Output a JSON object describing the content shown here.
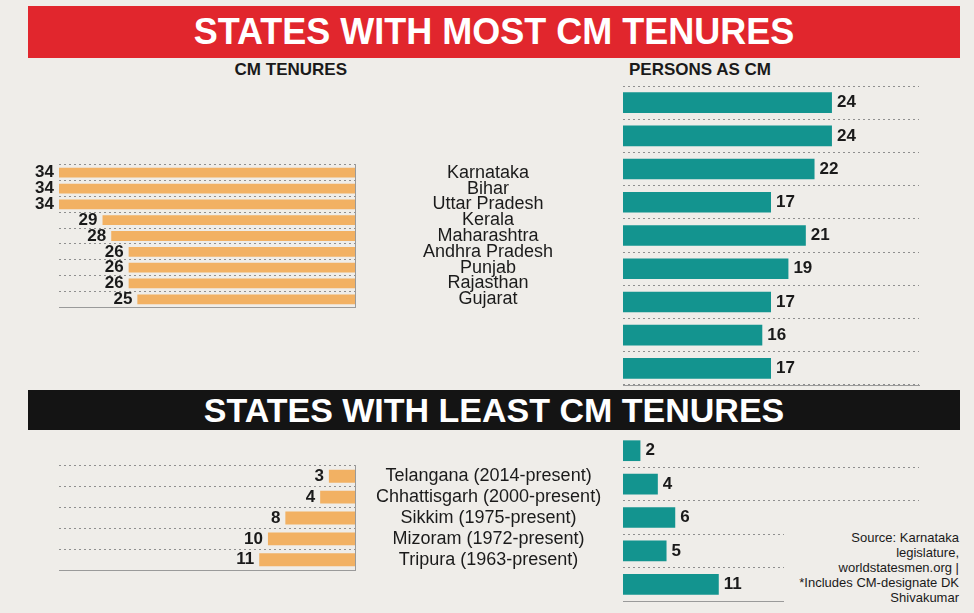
{
  "chart_data": [
    {
      "type": "bar",
      "title": "STATES WITH MOST CM TENURES",
      "orientation": "horizontal",
      "categories": [
        "Karnataka",
        "Bihar",
        "Uttar Pradesh",
        "Kerala",
        "Maharashtra",
        "Andhra Pradesh",
        "Punjab",
        "Rajasthan",
        "Gujarat"
      ],
      "series": [
        {
          "name": "CM TENURES",
          "color": "#f2b163",
          "values": [
            34,
            34,
            34,
            29,
            28,
            26,
            26,
            26,
            25
          ]
        },
        {
          "name": "PERSONS AS CM",
          "color": "#13948f",
          "values": [
            24,
            24,
            22,
            17,
            21,
            19,
            17,
            16,
            17
          ]
        }
      ],
      "xlim": [
        0,
        34
      ],
      "data_labels": true,
      "tick_labels": "y",
      "grid": true
    },
    {
      "type": "bar",
      "title": "STATES WITH LEAST CM TENURES",
      "orientation": "horizontal",
      "categories": [
        "Telangana (2014-present)",
        "Chhattisgarh (2000-present)",
        "Sikkim (1975-present)",
        "Mizoram (1972-present)",
        "Tripura (1963-present)"
      ],
      "series": [
        {
          "color": "#f2b163",
          "values": [
            3,
            4,
            8,
            10,
            11
          ]
        },
        {
          "color": "#13948f",
          "values": [
            2,
            4,
            6,
            5,
            11
          ]
        }
      ],
      "xlim": [
        0,
        34
      ],
      "data_labels": true,
      "tick_labels": "y",
      "grid": true,
      "annotations": [
        "Source: Karnataka legislature, worldstatesmen.org |",
        "*Includes CM-designate DK Shivakumar"
      ]
    }
  ]
}
